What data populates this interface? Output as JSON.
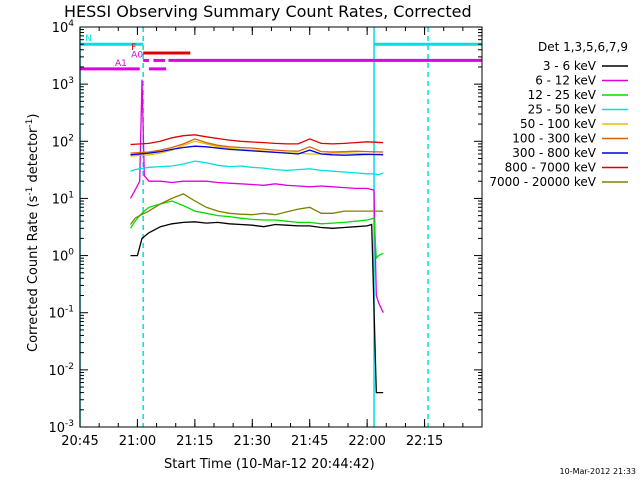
{
  "chart_data": {
    "type": "line",
    "title": "HESSI Observing Summary Count Rates, Corrected",
    "xlabel": "Start Time (10-Mar-12 20:44:42)",
    "ylabel": "Corrected Count Rate (s",
    "ylabel_sup1": "-1",
    "ylabel_mid": " detector",
    "ylabel_sup2": "-1",
    "ylabel_end": ")",
    "y_scale": "log",
    "x_range_minutes": [
      20.75,
      22.5
    ],
    "ylim": [
      0.001,
      10000
    ],
    "x_ticks": [
      {
        "label": "20:45",
        "t": 20.75
      },
      {
        "label": "21:00",
        "t": 21.0
      },
      {
        "label": "21:15",
        "t": 21.25
      },
      {
        "label": "21:30",
        "t": 21.5
      },
      {
        "label": "21:45",
        "t": 21.75
      },
      {
        "label": "22:00",
        "t": 22.0
      },
      {
        "label": "22:15",
        "t": 22.25
      }
    ],
    "y_ticks": [
      {
        "base": "10",
        "exp": "-3",
        "v": 0.001
      },
      {
        "base": "10",
        "exp": "-2",
        "v": 0.01
      },
      {
        "base": "10",
        "exp": "-1",
        "v": 0.1
      },
      {
        "base": "10",
        "exp": "0",
        "v": 1
      },
      {
        "base": "10",
        "exp": "1",
        "v": 10
      },
      {
        "base": "10",
        "exp": "2",
        "v": 100
      },
      {
        "base": "10",
        "exp": "3",
        "v": 1000
      },
      {
        "base": "10",
        "exp": "4",
        "v": 10000
      }
    ],
    "legend_title": "Det 1,3,5,6,7,9",
    "legend_placement": "right",
    "series": [
      {
        "name": "3 - 6 keV",
        "color": "#000000",
        "x": [
          20.97,
          20.99,
          21.0,
          21.02,
          21.05,
          21.1,
          21.15,
          21.2,
          21.25,
          21.3,
          21.35,
          21.4,
          21.45,
          21.5,
          21.55,
          21.6,
          21.65,
          21.7,
          21.75,
          21.8,
          21.85,
          21.9,
          21.95,
          22.0,
          22.02,
          22.04,
          22.05,
          22.07
        ],
        "y": [
          1.0,
          1.0,
          1.0,
          2.0,
          2.5,
          3.2,
          3.6,
          3.8,
          3.9,
          3.7,
          3.8,
          3.6,
          3.5,
          3.4,
          3.2,
          3.5,
          3.4,
          3.3,
          3.3,
          3.1,
          3.0,
          3.1,
          3.2,
          3.3,
          3.5,
          0.004,
          0.004,
          0.004
        ]
      },
      {
        "name": "6 - 12 keV",
        "color": "#e000e0",
        "x": [
          20.97,
          20.99,
          21.01,
          21.02,
          21.03,
          21.05,
          21.1,
          21.15,
          21.2,
          21.25,
          21.3,
          21.35,
          21.4,
          21.45,
          21.5,
          21.55,
          21.6,
          21.65,
          21.7,
          21.75,
          21.8,
          21.85,
          21.9,
          21.95,
          22.0,
          22.03,
          22.04,
          22.05,
          22.07
        ],
        "y": [
          10,
          14,
          20,
          1200,
          25,
          20,
          20,
          19,
          20,
          20,
          20,
          19,
          18.5,
          18,
          17.5,
          17,
          18,
          17,
          16.5,
          16,
          16.5,
          16,
          15.5,
          15,
          15,
          14,
          0.2,
          0.15,
          0.1
        ]
      },
      {
        "name": "12 - 25 keV",
        "color": "#00dd00",
        "x": [
          20.97,
          20.99,
          21.01,
          21.03,
          21.05,
          21.1,
          21.15,
          21.2,
          21.25,
          21.3,
          21.35,
          21.4,
          21.45,
          21.5,
          21.55,
          21.6,
          21.65,
          21.7,
          21.75,
          21.8,
          21.85,
          21.9,
          21.95,
          22.0,
          22.03,
          22.04,
          22.05,
          22.07
        ],
        "y": [
          3,
          4,
          5,
          6,
          7,
          8,
          9,
          7.5,
          6,
          5.5,
          5,
          4.8,
          4.5,
          4.3,
          4.2,
          4.2,
          4.0,
          3.8,
          3.8,
          3.6,
          3.7,
          3.8,
          4.0,
          4.2,
          4.5,
          0.9,
          1.0,
          1.1
        ]
      },
      {
        "name": "25 - 50 keV",
        "color": "#00e0e0",
        "x": [
          20.97,
          20.99,
          21.01,
          21.03,
          21.05,
          21.1,
          21.15,
          21.2,
          21.25,
          21.3,
          21.35,
          21.4,
          21.45,
          21.5,
          21.55,
          21.6,
          21.65,
          21.7,
          21.75,
          21.8,
          21.85,
          21.9,
          21.95,
          22.0,
          22.03,
          22.05,
          22.07
        ],
        "y": [
          30,
          32,
          33,
          34,
          35,
          36,
          37,
          40,
          45,
          42,
          38,
          36,
          37,
          35,
          34,
          32,
          31,
          32,
          33,
          31,
          30,
          29,
          28,
          27,
          27,
          26,
          28
        ]
      },
      {
        "name": "50 - 100 keV",
        "color": "#e0c000",
        "x": [
          20.97,
          21.05,
          21.1,
          21.15,
          21.2,
          21.25,
          21.3,
          21.35,
          21.4,
          21.45,
          21.5,
          21.55,
          21.6,
          21.65,
          21.7,
          21.75,
          21.8,
          21.85,
          21.9,
          21.95,
          22.0,
          22.07
        ],
        "y": [
          55,
          58,
          62,
          70,
          85,
          100,
          90,
          80,
          75,
          72,
          70,
          68,
          65,
          63,
          62,
          60,
          60,
          62,
          63,
          62,
          60,
          60
        ]
      },
      {
        "name": "100 - 300 keV",
        "color": "#e06000",
        "x": [
          20.97,
          21.05,
          21.1,
          21.15,
          21.2,
          21.25,
          21.3,
          21.35,
          21.4,
          21.45,
          21.5,
          21.55,
          21.6,
          21.65,
          21.7,
          21.75,
          21.8,
          21.85,
          21.9,
          21.95,
          22.0,
          22.07
        ],
        "y": [
          62,
          65,
          70,
          78,
          90,
          110,
          95,
          85,
          80,
          78,
          76,
          73,
          70,
          68,
          67,
          80,
          66,
          65,
          66,
          67,
          66,
          65
        ]
      },
      {
        "name": "300 - 800 keV",
        "color": "#0000e0",
        "x": [
          20.97,
          21.05,
          21.1,
          21.15,
          21.2,
          21.25,
          21.3,
          21.35,
          21.4,
          21.45,
          21.5,
          21.55,
          21.6,
          21.65,
          21.7,
          21.75,
          21.8,
          21.85,
          21.9,
          21.95,
          22.0,
          22.07
        ],
        "y": [
          58,
          62,
          66,
          72,
          78,
          82,
          80,
          76,
          72,
          70,
          68,
          66,
          64,
          62,
          60,
          70,
          60,
          58,
          57,
          58,
          59,
          58
        ]
      },
      {
        "name": "800 - 7000 keV",
        "color": "#e00000",
        "x": [
          20.97,
          21.05,
          21.1,
          21.15,
          21.2,
          21.25,
          21.3,
          21.35,
          21.4,
          21.45,
          21.5,
          21.55,
          21.6,
          21.65,
          21.7,
          21.75,
          21.8,
          21.85,
          21.9,
          21.95,
          22.0,
          22.07
        ],
        "y": [
          88,
          92,
          100,
          115,
          125,
          130,
          120,
          112,
          105,
          100,
          97,
          95,
          92,
          90,
          90,
          110,
          92,
          90,
          92,
          95,
          98,
          95
        ]
      },
      {
        "name": "7000 - 20000 keV",
        "color": "#808000",
        "x": [
          20.97,
          20.99,
          21.01,
          21.03,
          21.05,
          21.1,
          21.15,
          21.2,
          21.25,
          21.3,
          21.35,
          21.4,
          21.45,
          21.5,
          21.55,
          21.6,
          21.65,
          21.7,
          21.75,
          21.8,
          21.85,
          21.9,
          21.95,
          22.0,
          22.07
        ],
        "y": [
          3.5,
          4.5,
          5,
          5.5,
          6,
          8,
          10,
          12,
          9,
          7,
          6,
          5.5,
          5.3,
          5.2,
          5.5,
          5.2,
          5.8,
          6.5,
          7,
          5.5,
          5.5,
          6,
          6,
          6,
          6
        ]
      }
    ],
    "annotations": [
      {
        "label": "N",
        "color": "#00e0e0",
        "y": 5000,
        "segments": [
          [
            20.75,
            21.025
          ],
          [
            22.03,
            22.5
          ]
        ]
      },
      {
        "label": "F",
        "color": "#e00000",
        "y": 3500,
        "segments": [
          [
            21.025,
            21.23
          ]
        ]
      },
      {
        "label": "A0",
        "color": "#e000e0",
        "y": 2600,
        "segments": [
          [
            21.025,
            21.05
          ],
          [
            21.07,
            21.12
          ],
          [
            21.135,
            22.5
          ]
        ]
      },
      {
        "label": "A1",
        "color": "#e000e0",
        "y": 1850,
        "segments": [
          [
            20.75,
            21.01
          ],
          [
            21.05,
            21.125
          ]
        ]
      }
    ],
    "vertical_markers": [
      {
        "t": 21.025,
        "color": "#00e0e0",
        "style": "dashed"
      },
      {
        "t": 22.03,
        "color": "#00e0e0",
        "style": "solid"
      },
      {
        "t": 22.265,
        "color": "#00e0e0",
        "style": "dashed"
      },
      {
        "t": 20.75,
        "color": "#00e0e0",
        "style": "solid"
      }
    ],
    "grid": false
  },
  "footer": {
    "timestamp": "10-Mar-2012 21:33"
  }
}
